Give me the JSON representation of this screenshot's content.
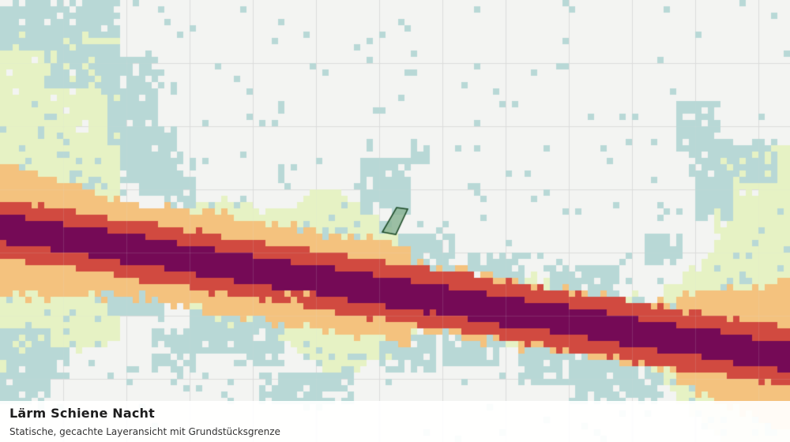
{
  "map": {
    "layer_title": "Lärm Schiene Nacht",
    "layer_subtitle": "Statische, gecachte Layeransicht mit Grundstücksgrenze",
    "colors": {
      "background": "#f3f4f2",
      "grid": "#dcdcdc",
      "buildings_blue": "#b8d8d6",
      "noise_light": "#e6f2c4",
      "noise_orange": "#f4c27e",
      "noise_red": "#d14a40",
      "noise_purple": "#750a56",
      "parcel_fill": "#8bb596",
      "parcel_stroke": "#1f4d2a"
    }
  }
}
